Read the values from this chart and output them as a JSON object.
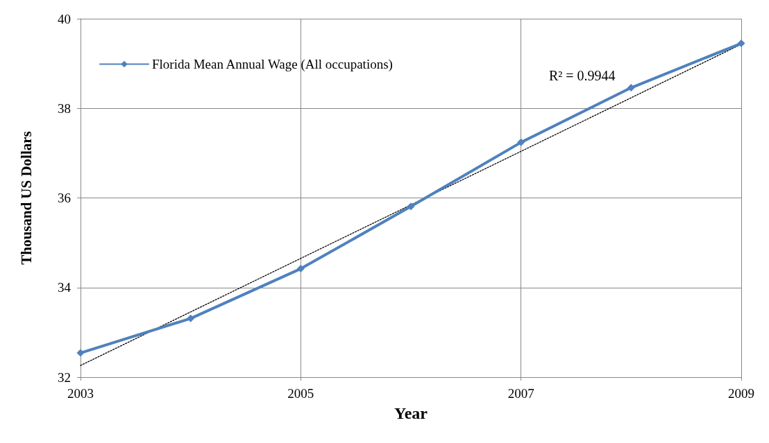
{
  "chart_data": {
    "type": "line",
    "xlabel": "Year",
    "ylabel": "Thousand US Dollars",
    "x": [
      2003,
      2004,
      2005,
      2006,
      2007,
      2008,
      2009
    ],
    "series": [
      {
        "name": "Florida Mean Annual Wage (All occupations)",
        "color": "#4f81bd",
        "values": [
          32.54,
          33.31,
          34.42,
          35.81,
          37.24,
          38.46,
          39.45
        ],
        "marker": "diamond",
        "line_style": "solid"
      },
      {
        "type": "line",
        "color": "#000000",
        "x": [
          2003,
          2009
        ],
        "values": [
          32.26,
          39.43
        ],
        "marker": "none",
        "line_style": "dotted"
      }
    ],
    "annotations": [
      "R² = 0.9944"
    ],
    "xlim": [
      2003,
      2009
    ],
    "xticks": [
      2003,
      2005,
      2007,
      2009
    ],
    "ylim": [
      32,
      40
    ],
    "yticks": [
      32,
      34,
      36,
      38,
      40
    ],
    "grid": true,
    "legend": "top left"
  }
}
